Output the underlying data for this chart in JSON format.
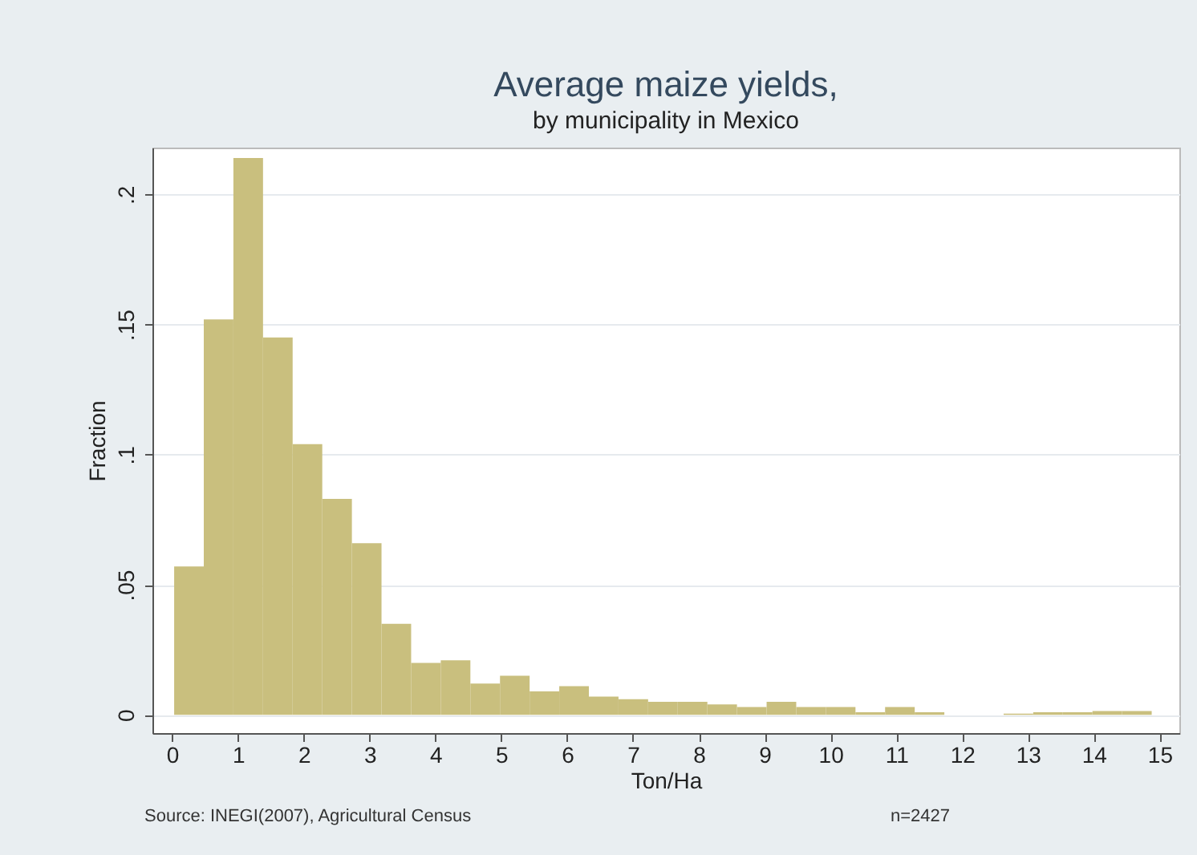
{
  "chart_data": {
    "type": "histogram",
    "title": "Average maize yields,",
    "subtitle": "by municipality in Mexico",
    "xlabel": "Ton/Ha",
    "ylabel": "Fraction",
    "color": "#c9bf7e",
    "bins": [
      0.03,
      0.48,
      0.93,
      1.38,
      1.83,
      2.28,
      2.73,
      3.18,
      3.63,
      4.08,
      4.53,
      4.98,
      5.43,
      5.88,
      6.33,
      6.78,
      7.23,
      7.68,
      8.13,
      8.58,
      9.03,
      9.48,
      9.93,
      10.38,
      10.83,
      11.28,
      11.73,
      12.18,
      12.63,
      13.08,
      13.53,
      13.98,
      14.43,
      14.88
    ],
    "values": [
      0.057,
      0.152,
      0.214,
      0.145,
      0.104,
      0.083,
      0.066,
      0.035,
      0.02,
      0.021,
      0.012,
      0.015,
      0.009,
      0.011,
      0.007,
      0.006,
      0.005,
      0.005,
      0.004,
      0.003,
      0.005,
      0.003,
      0.003,
      0.001,
      0.003,
      0.001,
      0,
      0,
      0.0005,
      0.001,
      0.001,
      0.0015,
      0.0015
    ],
    "xlim": [
      -0.3,
      15.3
    ],
    "ylim": [
      -0.007,
      0.218
    ],
    "xticks": [
      0,
      1,
      2,
      3,
      4,
      5,
      6,
      7,
      8,
      9,
      10,
      11,
      12,
      13,
      14,
      15
    ],
    "yticks": [
      {
        "value": 0,
        "label": "0"
      },
      {
        "value": 0.05,
        "label": ".05"
      },
      {
        "value": 0.1,
        "label": ".1"
      },
      {
        "value": 0.15,
        "label": ".15"
      },
      {
        "value": 0.2,
        "label": ".2"
      }
    ],
    "grid": "y",
    "annotations": [
      "Source: INEGI(2007), Agricultural Census",
      "n=2427"
    ]
  }
}
